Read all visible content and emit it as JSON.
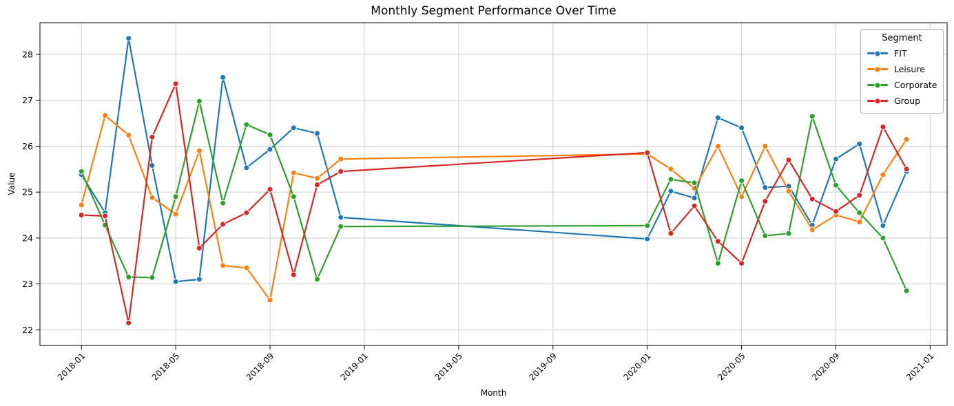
{
  "chart_data": {
    "type": "line",
    "title": "Monthly Segment Performance Over Time",
    "xlabel": "Month",
    "ylabel": "Value",
    "legend_title": "Segment",
    "legend_position": "upper right",
    "grid": true,
    "y_ticks": [
      22,
      23,
      24,
      25,
      26,
      27,
      28
    ],
    "y_range": [
      21.66,
      28.69
    ],
    "x_range_month_index": [
      -1.76,
      36.72
    ],
    "x_tick_labels": [
      "2018-01",
      "2018-05",
      "2018-09",
      "2019-01",
      "2019-05",
      "2019-09",
      "2020-01",
      "2020-05",
      "2020-09",
      "2021-01"
    ],
    "x_tick_month_index": [
      0,
      4,
      8,
      12,
      16,
      20,
      24,
      28,
      32,
      36
    ],
    "months": [
      "2018-01",
      "2018-02",
      "2018-03",
      "2018-04",
      "2018-05",
      "2018-06",
      "2018-07",
      "2018-08",
      "2018-09",
      "2018-10",
      "2018-11",
      "2018-12",
      "2020-01",
      "2020-02",
      "2020-03",
      "2020-04",
      "2020-05",
      "2020-06",
      "2020-07",
      "2020-08",
      "2020-09",
      "2020-10",
      "2020-11",
      "2020-12"
    ],
    "month_index": [
      0,
      1,
      2,
      3,
      4,
      5,
      6,
      7,
      8,
      9,
      10,
      11,
      24,
      25,
      26,
      27,
      28,
      29,
      30,
      31,
      32,
      33,
      34,
      35
    ],
    "gap_note": "no 2019 data; lines connect 2018-12 directly to 2020-01",
    "series": [
      {
        "name": "FIT",
        "color": "#1f77b4",
        "values": [
          25.38,
          24.55,
          28.35,
          25.58,
          23.05,
          23.1,
          27.5,
          25.53,
          25.93,
          26.4,
          26.28,
          24.45,
          23.98,
          25.02,
          24.87,
          26.62,
          26.4,
          25.1,
          25.13,
          24.28,
          25.72,
          26.05,
          24.27,
          25.45
        ]
      },
      {
        "name": "Leisure",
        "color": "#ff7f0e",
        "values": [
          24.72,
          26.67,
          26.24,
          24.88,
          24.52,
          25.9,
          23.4,
          23.35,
          22.65,
          25.42,
          25.3,
          25.72,
          25.83,
          25.5,
          25.08,
          26.0,
          24.9,
          26.0,
          25.02,
          24.18,
          24.5,
          24.35,
          25.38,
          26.15
        ]
      },
      {
        "name": "Corporate",
        "color": "#2ca02c",
        "values": [
          25.45,
          24.28,
          23.15,
          23.14,
          24.9,
          26.98,
          24.76,
          26.47,
          26.25,
          24.9,
          23.1,
          24.25,
          24.27,
          25.28,
          25.2,
          23.45,
          25.25,
          24.05,
          24.1,
          26.65,
          25.15,
          24.55,
          24.0,
          22.85
        ]
      },
      {
        "name": "Group",
        "color": "#d62728",
        "values": [
          24.5,
          24.48,
          22.15,
          26.2,
          27.36,
          23.78,
          24.3,
          24.55,
          25.06,
          23.2,
          25.16,
          25.45,
          25.86,
          24.1,
          24.7,
          23.93,
          23.45,
          24.8,
          25.7,
          24.85,
          24.58,
          24.93,
          26.42,
          25.5
        ]
      }
    ],
    "style": {
      "grid_color": "#cccccc",
      "spine_color": "#000000",
      "marker": "circle",
      "marker_edge_color": "#ffffff"
    }
  }
}
